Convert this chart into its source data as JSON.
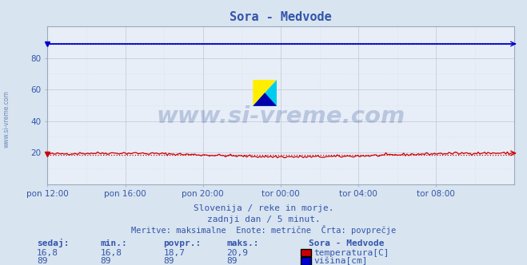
{
  "title": "Sora - Medvode",
  "bg_color": "#d8e4f0",
  "plot_bg_color": "#e8eef8",
  "grid_color_major": "#c8ccd8",
  "grid_color_minor": "#d8dce8",
  "xlim": [
    0,
    288
  ],
  "ylim": [
    0,
    100
  ],
  "yticks": [
    20,
    40,
    60,
    80
  ],
  "xtick_labels": [
    "pon 12:00",
    "pon 16:00",
    "pon 20:00",
    "tor 00:00",
    "tor 04:00",
    "tor 08:00"
  ],
  "xtick_positions": [
    0,
    48,
    96,
    144,
    192,
    240
  ],
  "temp_color": "#cc0000",
  "height_color": "#0000cc",
  "temp_avg": 18.7,
  "height_avg": 89,
  "watermark_text": "www.si-vreme.com",
  "watermark_color": "#4060a0",
  "watermark_alpha": 0.28,
  "subtitle1": "Slovenija / reke in morje.",
  "subtitle2": "zadnji dan / 5 minut.",
  "subtitle3": "Meritve: maksimalne  Enote: metrične  Črta: povprečje",
  "legend_title": "Sora - Medvode",
  "legend_items": [
    "temperatura[C]",
    "višina[cm]"
  ],
  "legend_colors": [
    "#cc0000",
    "#0000cc"
  ],
  "table_headers": [
    "sedaj:",
    "min.:",
    "povpr.:",
    "maks.:"
  ],
  "table_temp": [
    "16,8",
    "16,8",
    "18,7",
    "20,9"
  ],
  "table_height": [
    "89",
    "89",
    "89",
    "89"
  ],
  "table_color": "#3355aa",
  "title_color": "#3355aa",
  "subtitle_color": "#3355aa"
}
